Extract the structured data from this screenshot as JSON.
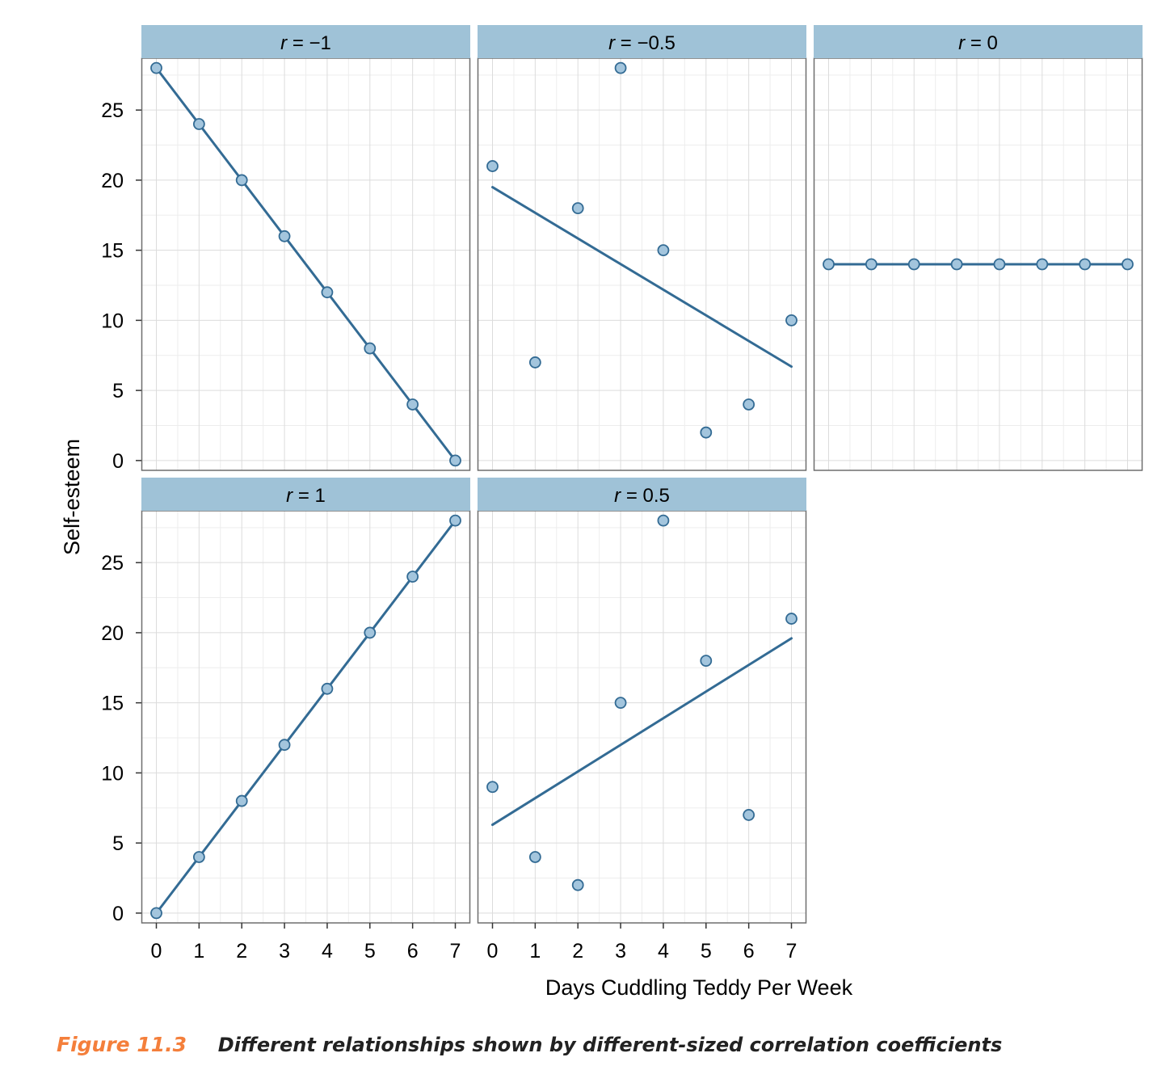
{
  "chart_data": {
    "type": "scatter",
    "layout": "facet-grid",
    "xlabel": "Days Cuddling Teddy Per Week",
    "ylabel": "Self-esteem",
    "x_ticks": [
      "0",
      "1",
      "2",
      "3",
      "4",
      "5",
      "6",
      "7"
    ],
    "y_ticks": [
      "0",
      "5",
      "10",
      "15",
      "20",
      "25"
    ],
    "xlim": [
      -0.35,
      7.35
    ],
    "ylim": [
      -0.7,
      28.7
    ],
    "grid": true,
    "colors": {
      "strip": "#9fc2d7",
      "line": "#336b94",
      "point_fill": "#a3c5dd",
      "point_stroke": "#336b94",
      "panel_border": "#6e6e6e",
      "grid_major": "#dcdcdc",
      "grid_minor": "#ededed"
    },
    "panels": [
      {
        "title": "= −1",
        "x": [
          0,
          1,
          2,
          3,
          4,
          5,
          6,
          7
        ],
        "y": [
          28,
          24,
          20,
          16,
          12,
          8,
          4,
          0
        ],
        "fit": [
          [
            0,
            28
          ],
          [
            7,
            0
          ]
        ]
      },
      {
        "title": "= −0.5",
        "x": [
          0,
          1,
          2,
          3,
          4,
          5,
          6,
          7
        ],
        "y": [
          21,
          7,
          18,
          28,
          15,
          2,
          4,
          10
        ],
        "fit": [
          [
            0,
            19.5
          ],
          [
            7,
            6.7
          ]
        ]
      },
      {
        "title": "= 0",
        "x": [
          0,
          1,
          2,
          3,
          4,
          5,
          6,
          7
        ],
        "y": [
          14,
          14,
          14,
          14,
          14,
          14,
          14,
          14
        ],
        "fit": [
          [
            0,
            14
          ],
          [
            7,
            14
          ]
        ]
      },
      {
        "title": "= 1",
        "x": [
          0,
          1,
          2,
          3,
          4,
          5,
          6,
          7
        ],
        "y": [
          0,
          4,
          8,
          12,
          16,
          20,
          24,
          28
        ],
        "fit": [
          [
            0,
            0
          ],
          [
            7,
            28
          ]
        ]
      },
      {
        "title": "= 0.5",
        "x": [
          0,
          1,
          2,
          3,
          4,
          5,
          6,
          7
        ],
        "y": [
          9,
          4,
          2,
          15,
          28,
          18,
          7,
          21
        ],
        "fit": [
          [
            0,
            6.3
          ],
          [
            7,
            19.6
          ]
        ]
      }
    ]
  },
  "strip_prefix": "r",
  "caption": {
    "label": "Figure 11.3",
    "text": "Different relationships shown by different-sized correlation coefficients"
  }
}
